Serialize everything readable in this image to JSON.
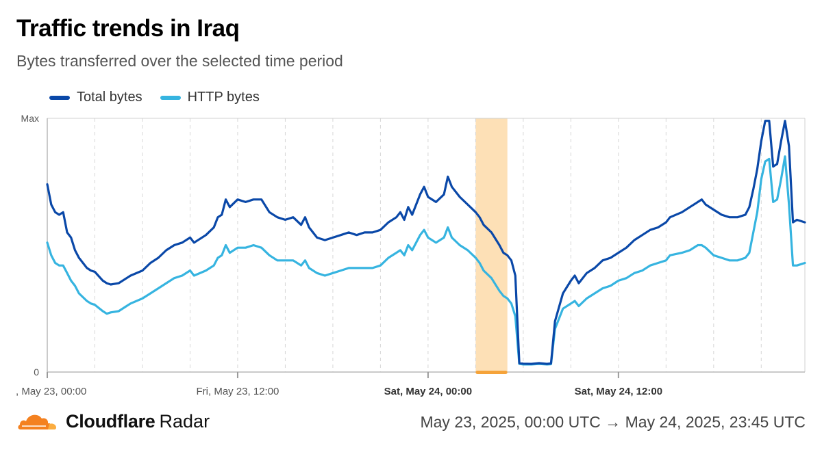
{
  "header": {
    "title": "Traffic trends in Iraq",
    "subtitle": "Bytes transferred over the selected time period"
  },
  "footer": {
    "brand_name": "Cloudflare",
    "brand_product": "Radar",
    "date_range": "May 23, 2025, 00:00 UTC → May 24, 2025, 23:45 UTC"
  },
  "colors": {
    "total": "#0a48a8",
    "http": "#36b4e0",
    "outage_band": "#fde0b6",
    "outage_marker": "#f5a33a",
    "brand_orange": "#f48120",
    "brand_orange_light": "#fbad41"
  },
  "chart_data": {
    "type": "line",
    "x_unit": "hours since May 23, 2025, 00:00 UTC",
    "xlim": [
      0,
      47.75
    ],
    "y_tick_labels": [
      "0",
      "Max"
    ],
    "y_scale": "normalized (0 = 0, 100 = Max)",
    "ylim": [
      0,
      100
    ],
    "grid": "vertical dashed every 6 hours",
    "legend_placement": "top-left",
    "x_ticks": [
      {
        "x": 0,
        "label": ", May 23, 00:00",
        "bold": false
      },
      {
        "x": 12,
        "label": "Fri, May 23, 12:00",
        "bold": false
      },
      {
        "x": 24,
        "label": "Sat, May 24, 00:00",
        "bold": true
      },
      {
        "x": 36,
        "label": "Sat, May 24, 12:00",
        "bold": true
      }
    ],
    "highlight": {
      "x_start": 27,
      "x_end": 29
    },
    "series": [
      {
        "name": "Total bytes",
        "key": "total",
        "points": [
          [
            0,
            74
          ],
          [
            0.25,
            66
          ],
          [
            0.5,
            63
          ],
          [
            0.75,
            62
          ],
          [
            1,
            63
          ],
          [
            1.25,
            55
          ],
          [
            1.5,
            53
          ],
          [
            1.75,
            48
          ],
          [
            2,
            45
          ],
          [
            2.5,
            41
          ],
          [
            2.75,
            40
          ],
          [
            3,
            39.5
          ],
          [
            3.5,
            36
          ],
          [
            3.75,
            35
          ],
          [
            4,
            34.5
          ],
          [
            4.5,
            35
          ],
          [
            5,
            37
          ],
          [
            5.25,
            38
          ],
          [
            6,
            40
          ],
          [
            6.5,
            43
          ],
          [
            7,
            45
          ],
          [
            7.5,
            48
          ],
          [
            8,
            50
          ],
          [
            8.5,
            51
          ],
          [
            9,
            53
          ],
          [
            9.25,
            51
          ],
          [
            10,
            54
          ],
          [
            10.5,
            57
          ],
          [
            10.75,
            61
          ],
          [
            11,
            62
          ],
          [
            11.25,
            68
          ],
          [
            11.5,
            65
          ],
          [
            12,
            68
          ],
          [
            12.5,
            67
          ],
          [
            13,
            68
          ],
          [
            13.5,
            68
          ],
          [
            14,
            63
          ],
          [
            14.5,
            61
          ],
          [
            15,
            60
          ],
          [
            15.5,
            61
          ],
          [
            16,
            58
          ],
          [
            16.25,
            61
          ],
          [
            16.5,
            57
          ],
          [
            17,
            53
          ],
          [
            17.5,
            52
          ],
          [
            18,
            53
          ],
          [
            18.5,
            54
          ],
          [
            19,
            55
          ],
          [
            19.5,
            54
          ],
          [
            20,
            55
          ],
          [
            20.5,
            55
          ],
          [
            21,
            56
          ],
          [
            21.5,
            59
          ],
          [
            22,
            61
          ],
          [
            22.25,
            63
          ],
          [
            22.5,
            60
          ],
          [
            22.75,
            65
          ],
          [
            23,
            62
          ],
          [
            23.5,
            70
          ],
          [
            23.75,
            73
          ],
          [
            24,
            69
          ],
          [
            24.5,
            67
          ],
          [
            25,
            70
          ],
          [
            25.25,
            77
          ],
          [
            25.5,
            73
          ],
          [
            26,
            69
          ],
          [
            26.5,
            66
          ],
          [
            27,
            63
          ],
          [
            27.25,
            61
          ],
          [
            27.5,
            58
          ],
          [
            28,
            55
          ],
          [
            28.5,
            50
          ],
          [
            28.75,
            47
          ],
          [
            29,
            46
          ],
          [
            29.25,
            44
          ],
          [
            29.5,
            38
          ],
          [
            29.75,
            3.5
          ],
          [
            30,
            3.3
          ],
          [
            30.5,
            3.2
          ],
          [
            31,
            3.5
          ],
          [
            31.5,
            3.2
          ],
          [
            31.75,
            3.4
          ],
          [
            32,
            20
          ],
          [
            32.5,
            31
          ],
          [
            33,
            36
          ],
          [
            33.25,
            38
          ],
          [
            33.5,
            35
          ],
          [
            34,
            39
          ],
          [
            34.5,
            41
          ],
          [
            35,
            44
          ],
          [
            35.5,
            45
          ],
          [
            36,
            47
          ],
          [
            36.5,
            49
          ],
          [
            37,
            52
          ],
          [
            37.5,
            54
          ],
          [
            38,
            56
          ],
          [
            38.5,
            57
          ],
          [
            39,
            59
          ],
          [
            39.25,
            61
          ],
          [
            40,
            63
          ],
          [
            40.5,
            65
          ],
          [
            41,
            67
          ],
          [
            41.25,
            68
          ],
          [
            41.5,
            66
          ],
          [
            42,
            64
          ],
          [
            42.5,
            62
          ],
          [
            43,
            61
          ],
          [
            43.5,
            61
          ],
          [
            44,
            62
          ],
          [
            44.25,
            65
          ],
          [
            44.5,
            72
          ],
          [
            44.75,
            80
          ],
          [
            45,
            91
          ],
          [
            45.25,
            99
          ],
          [
            45.5,
            99
          ],
          [
            45.75,
            81
          ],
          [
            46,
            82
          ],
          [
            46.25,
            91
          ],
          [
            46.5,
            99
          ],
          [
            46.75,
            89
          ],
          [
            47,
            59
          ],
          [
            47.25,
            60
          ],
          [
            47.75,
            59
          ]
        ]
      },
      {
        "name": "HTTP bytes",
        "key": "http",
        "points": [
          [
            0,
            51
          ],
          [
            0.25,
            46
          ],
          [
            0.5,
            43
          ],
          [
            0.75,
            42
          ],
          [
            1,
            42
          ],
          [
            1.25,
            39
          ],
          [
            1.5,
            36
          ],
          [
            1.75,
            34
          ],
          [
            2,
            31
          ],
          [
            2.5,
            28
          ],
          [
            2.75,
            27
          ],
          [
            3,
            26.5
          ],
          [
            3.5,
            24
          ],
          [
            3.75,
            23
          ],
          [
            4,
            23.5
          ],
          [
            4.5,
            24
          ],
          [
            5,
            26
          ],
          [
            5.25,
            27
          ],
          [
            6,
            29
          ],
          [
            6.5,
            31
          ],
          [
            7,
            33
          ],
          [
            7.5,
            35
          ],
          [
            8,
            37
          ],
          [
            8.5,
            38
          ],
          [
            9,
            40
          ],
          [
            9.25,
            38
          ],
          [
            10,
            40
          ],
          [
            10.5,
            42
          ],
          [
            10.75,
            45
          ],
          [
            11,
            46
          ],
          [
            11.25,
            50
          ],
          [
            11.5,
            47
          ],
          [
            12,
            49
          ],
          [
            12.5,
            49
          ],
          [
            13,
            50
          ],
          [
            13.5,
            49
          ],
          [
            14,
            46
          ],
          [
            14.5,
            44
          ],
          [
            15,
            44
          ],
          [
            15.5,
            44
          ],
          [
            16,
            42
          ],
          [
            16.25,
            44
          ],
          [
            16.5,
            41
          ],
          [
            17,
            39
          ],
          [
            17.5,
            38
          ],
          [
            18,
            39
          ],
          [
            18.5,
            40
          ],
          [
            19,
            41
          ],
          [
            19.5,
            41
          ],
          [
            20,
            41
          ],
          [
            20.5,
            41
          ],
          [
            21,
            42
          ],
          [
            21.5,
            45
          ],
          [
            22,
            47
          ],
          [
            22.25,
            48
          ],
          [
            22.5,
            46
          ],
          [
            22.75,
            50
          ],
          [
            23,
            48
          ],
          [
            23.5,
            54
          ],
          [
            23.75,
            56
          ],
          [
            24,
            53
          ],
          [
            24.5,
            51
          ],
          [
            25,
            53
          ],
          [
            25.25,
            57
          ],
          [
            25.5,
            53
          ],
          [
            26,
            50
          ],
          [
            26.5,
            48
          ],
          [
            27,
            45
          ],
          [
            27.25,
            43
          ],
          [
            27.5,
            40
          ],
          [
            28,
            37
          ],
          [
            28.5,
            32
          ],
          [
            28.75,
            30
          ],
          [
            29,
            29
          ],
          [
            29.25,
            27
          ],
          [
            29.5,
            22
          ],
          [
            29.75,
            3.2
          ],
          [
            30,
            3
          ],
          [
            30.5,
            3
          ],
          [
            31,
            3.2
          ],
          [
            31.5,
            3
          ],
          [
            31.75,
            3.1
          ],
          [
            32,
            17
          ],
          [
            32.5,
            25
          ],
          [
            33,
            27
          ],
          [
            33.25,
            28
          ],
          [
            33.5,
            26
          ],
          [
            34,
            29
          ],
          [
            34.5,
            31
          ],
          [
            35,
            33
          ],
          [
            35.5,
            34
          ],
          [
            36,
            36
          ],
          [
            36.5,
            37
          ],
          [
            37,
            39
          ],
          [
            37.5,
            40
          ],
          [
            38,
            42
          ],
          [
            38.5,
            43
          ],
          [
            39,
            44
          ],
          [
            39.25,
            46
          ],
          [
            40,
            47
          ],
          [
            40.5,
            48
          ],
          [
            41,
            50
          ],
          [
            41.25,
            50
          ],
          [
            41.5,
            49
          ],
          [
            42,
            46
          ],
          [
            42.5,
            45
          ],
          [
            43,
            44
          ],
          [
            43.5,
            44
          ],
          [
            44,
            45
          ],
          [
            44.25,
            47
          ],
          [
            44.5,
            55
          ],
          [
            44.75,
            63
          ],
          [
            45,
            76
          ],
          [
            45.25,
            83
          ],
          [
            45.5,
            84
          ],
          [
            45.75,
            67
          ],
          [
            46,
            68
          ],
          [
            46.25,
            76
          ],
          [
            46.5,
            85
          ],
          [
            46.75,
            66
          ],
          [
            47,
            42
          ],
          [
            47.25,
            42
          ],
          [
            47.75,
            43
          ]
        ]
      }
    ]
  }
}
